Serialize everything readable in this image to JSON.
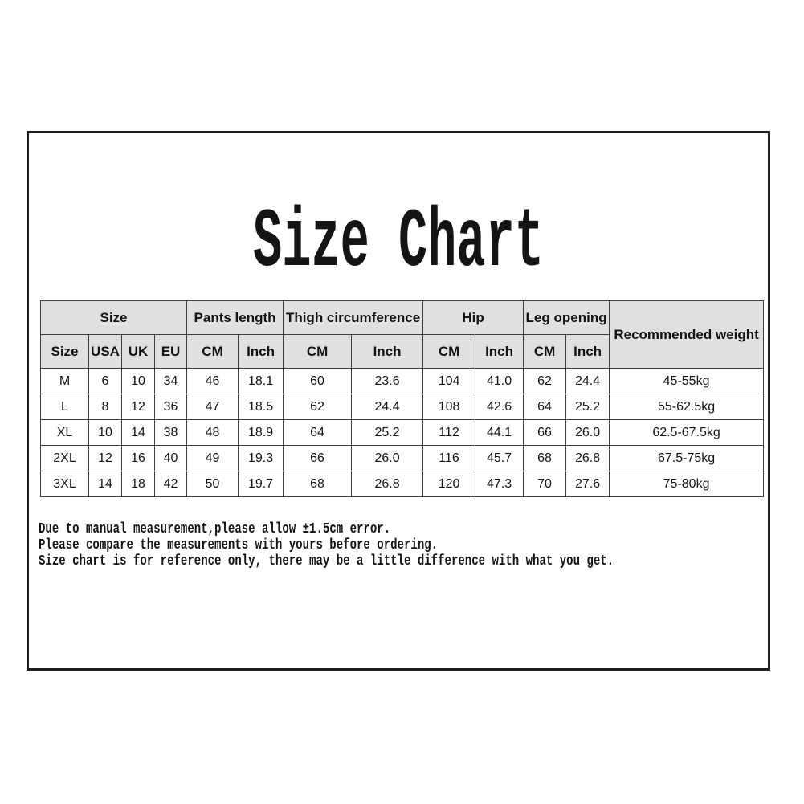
{
  "page": {
    "title": "Size Chart"
  },
  "table": {
    "group_headers": [
      {
        "label": "Size",
        "span": 4
      },
      {
        "label": "Pants length",
        "span": 2
      },
      {
        "label": "Thigh circumference",
        "span": 2
      },
      {
        "label": "Hip",
        "span": 2
      },
      {
        "label": "Leg opening",
        "span": 2
      }
    ],
    "recommended_weight_header": "Recommended weight",
    "subheaders": [
      "Size",
      "USA",
      "UK",
      "EU",
      "CM",
      "Inch",
      "CM",
      "Inch",
      "CM",
      "Inch",
      "CM",
      "Inch"
    ],
    "rows": [
      [
        "M",
        "6",
        "10",
        "34",
        "46",
        "18.1",
        "60",
        "23.6",
        "104",
        "41.0",
        "62",
        "24.4",
        "45-55kg"
      ],
      [
        "L",
        "8",
        "12",
        "36",
        "47",
        "18.5",
        "62",
        "24.4",
        "108",
        "42.6",
        "64",
        "25.2",
        "55-62.5kg"
      ],
      [
        "XL",
        "10",
        "14",
        "38",
        "48",
        "18.9",
        "64",
        "25.2",
        "112",
        "44.1",
        "66",
        "26.0",
        "62.5-67.5kg"
      ],
      [
        "2XL",
        "12",
        "16",
        "40",
        "49",
        "19.3",
        "66",
        "26.0",
        "116",
        "45.7",
        "68",
        "26.8",
        "67.5-75kg"
      ],
      [
        "3XL",
        "14",
        "18",
        "42",
        "50",
        "19.7",
        "68",
        "26.8",
        "120",
        "47.3",
        "70",
        "27.6",
        "75-80kg"
      ]
    ]
  },
  "notes": [
    "Due to manual measurement,please allow ±1.5cm error.",
    "Please compare the measurements with yours before ordering.",
    "Size chart is for reference only, there may be a little difference with what you get."
  ],
  "colors": {
    "header_bg": "#e0e0e0",
    "table_border": "#3f3f3f",
    "frame_border": "#1c1c1c",
    "text": "#141414"
  }
}
